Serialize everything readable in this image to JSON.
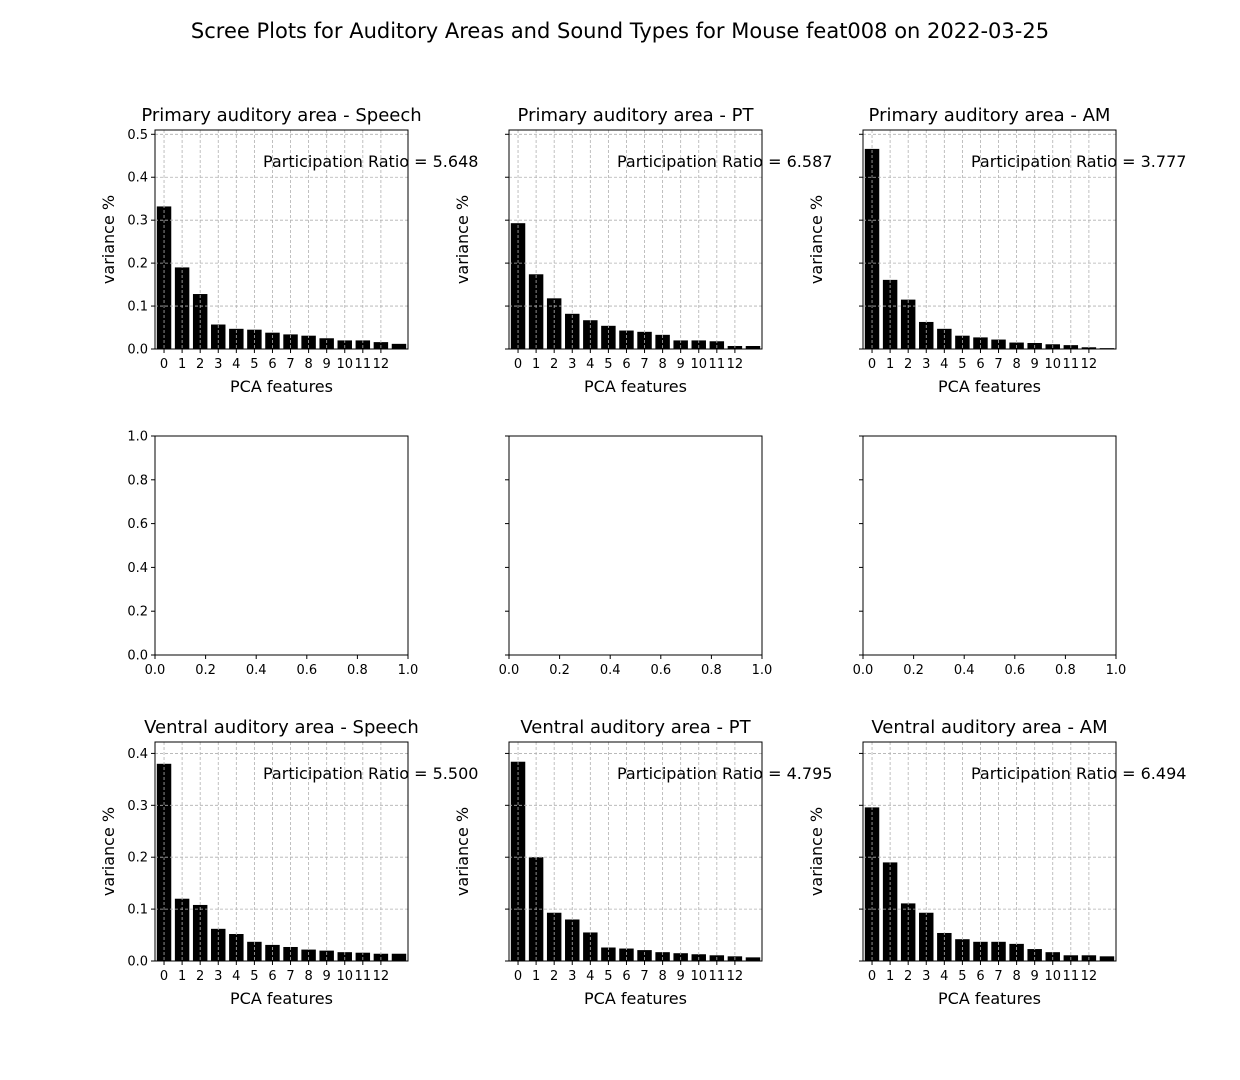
{
  "figure": {
    "title": "Scree Plots for Auditory Areas and Sound Types for Mouse feat008 on 2022-03-25"
  },
  "chart_data": [
    {
      "type": "bar",
      "panel": "row1-col1",
      "title": "Primary auditory area - Speech",
      "xlabel": "PCA features",
      "ylabel": "variance %",
      "x": [
        0,
        1,
        2,
        3,
        4,
        5,
        6,
        7,
        8,
        9,
        10,
        11,
        12,
        13
      ],
      "xticks": [
        0,
        1,
        2,
        3,
        4,
        5,
        6,
        7,
        8,
        9,
        10,
        11,
        12
      ],
      "values": [
        0.332,
        0.19,
        0.128,
        0.057,
        0.047,
        0.045,
        0.038,
        0.034,
        0.031,
        0.025,
        0.02,
        0.02,
        0.016,
        0.012
      ],
      "ylim": [
        0,
        0.51
      ],
      "yticks": [
        "0.0",
        "0.1",
        "0.2",
        "0.3",
        "0.4",
        "0.5"
      ],
      "show_yticklabels": true,
      "grid": true,
      "annotation": "Participation Ratio = 5.648"
    },
    {
      "type": "bar",
      "panel": "row1-col2",
      "title": "Primary auditory area - PT",
      "xlabel": "PCA features",
      "ylabel": "variance %",
      "x": [
        0,
        1,
        2,
        3,
        4,
        5,
        6,
        7,
        8,
        9,
        10,
        11,
        12,
        13
      ],
      "xticks": [
        0,
        1,
        2,
        3,
        4,
        5,
        6,
        7,
        8,
        9,
        10,
        11,
        12
      ],
      "values": [
        0.293,
        0.174,
        0.118,
        0.082,
        0.067,
        0.054,
        0.043,
        0.04,
        0.033,
        0.02,
        0.02,
        0.018,
        0.007,
        0.007
      ],
      "ylim": [
        0,
        0.51
      ],
      "yticks": [
        "0.0",
        "0.1",
        "0.2",
        "0.3",
        "0.4",
        "0.5"
      ],
      "show_yticklabels": false,
      "grid": true,
      "annotation": "Participation Ratio = 6.587"
    },
    {
      "type": "bar",
      "panel": "row1-col3",
      "title": "Primary auditory area - AM",
      "xlabel": "PCA features",
      "ylabel": "variance %",
      "x": [
        0,
        1,
        2,
        3,
        4,
        5,
        6,
        7,
        8,
        9,
        10,
        11,
        12,
        13
      ],
      "xticks": [
        0,
        1,
        2,
        3,
        4,
        5,
        6,
        7,
        8,
        9,
        10,
        11,
        12
      ],
      "values": [
        0.466,
        0.161,
        0.115,
        0.063,
        0.047,
        0.031,
        0.027,
        0.022,
        0.015,
        0.014,
        0.011,
        0.009,
        0.004,
        0.002
      ],
      "ylim": [
        0,
        0.51
      ],
      "yticks": [
        "0.0",
        "0.1",
        "0.2",
        "0.3",
        "0.4",
        "0.5"
      ],
      "show_yticklabels": false,
      "grid": true,
      "annotation": "Participation Ratio = 3.777"
    },
    {
      "type": "empty",
      "panel": "row2-col1",
      "xlim": [
        0,
        1
      ],
      "ylim": [
        0,
        1
      ],
      "xticks": [
        "0.0",
        "0.2",
        "0.4",
        "0.6",
        "0.8",
        "1.0"
      ],
      "yticks": [
        "0.0",
        "0.2",
        "0.4",
        "0.6",
        "0.8",
        "1.0"
      ],
      "show_yticklabels": true
    },
    {
      "type": "empty",
      "panel": "row2-col2",
      "xlim": [
        0,
        1
      ],
      "ylim": [
        0,
        1
      ],
      "xticks": [
        "0.0",
        "0.2",
        "0.4",
        "0.6",
        "0.8",
        "1.0"
      ],
      "yticks": [
        "0.0",
        "0.2",
        "0.4",
        "0.6",
        "0.8",
        "1.0"
      ],
      "show_yticklabels": false
    },
    {
      "type": "empty",
      "panel": "row2-col3",
      "xlim": [
        0,
        1
      ],
      "ylim": [
        0,
        1
      ],
      "xticks": [
        "0.0",
        "0.2",
        "0.4",
        "0.6",
        "0.8",
        "1.0"
      ],
      "yticks": [
        "0.0",
        "0.2",
        "0.4",
        "0.6",
        "0.8",
        "1.0"
      ],
      "show_yticklabels": false
    },
    {
      "type": "bar",
      "panel": "row3-col1",
      "title": "Ventral auditory area - Speech",
      "xlabel": "PCA features",
      "ylabel": "variance %",
      "x": [
        0,
        1,
        2,
        3,
        4,
        5,
        6,
        7,
        8,
        9,
        10,
        11,
        12,
        13
      ],
      "xticks": [
        0,
        1,
        2,
        3,
        4,
        5,
        6,
        7,
        8,
        9,
        10,
        11,
        12
      ],
      "values": [
        0.38,
        0.12,
        0.108,
        0.062,
        0.052,
        0.037,
        0.031,
        0.027,
        0.022,
        0.02,
        0.017,
        0.016,
        0.014,
        0.014
      ],
      "ylim": [
        0,
        0.422
      ],
      "yticks": [
        "0.0",
        "0.1",
        "0.2",
        "0.3",
        "0.4"
      ],
      "show_yticklabels": true,
      "grid": true,
      "annotation": "Participation Ratio = 5.500"
    },
    {
      "type": "bar",
      "panel": "row3-col2",
      "title": "Ventral auditory area - PT",
      "xlabel": "PCA features",
      "ylabel": "variance %",
      "x": [
        0,
        1,
        2,
        3,
        4,
        5,
        6,
        7,
        8,
        9,
        10,
        11,
        12,
        13
      ],
      "xticks": [
        0,
        1,
        2,
        3,
        4,
        5,
        6,
        7,
        8,
        9,
        10,
        11,
        12
      ],
      "values": [
        0.384,
        0.2,
        0.093,
        0.08,
        0.055,
        0.026,
        0.024,
        0.021,
        0.017,
        0.015,
        0.013,
        0.011,
        0.009,
        0.007
      ],
      "ylim": [
        0,
        0.422
      ],
      "yticks": [
        "0.0",
        "0.1",
        "0.2",
        "0.3",
        "0.4"
      ],
      "show_yticklabels": false,
      "grid": true,
      "annotation": "Participation Ratio = 4.795"
    },
    {
      "type": "bar",
      "panel": "row3-col3",
      "title": "Ventral auditory area - AM",
      "xlabel": "PCA features",
      "ylabel": "variance %",
      "x": [
        0,
        1,
        2,
        3,
        4,
        5,
        6,
        7,
        8,
        9,
        10,
        11,
        12,
        13
      ],
      "xticks": [
        0,
        1,
        2,
        3,
        4,
        5,
        6,
        7,
        8,
        9,
        10,
        11,
        12
      ],
      "values": [
        0.296,
        0.19,
        0.111,
        0.093,
        0.054,
        0.042,
        0.037,
        0.037,
        0.033,
        0.023,
        0.017,
        0.011,
        0.011,
        0.009
      ],
      "ylim": [
        0,
        0.422
      ],
      "yticks": [
        "0.0",
        "0.1",
        "0.2",
        "0.3",
        "0.4"
      ],
      "show_yticklabels": false,
      "grid": true,
      "annotation": "Participation Ratio = 6.494"
    }
  ]
}
